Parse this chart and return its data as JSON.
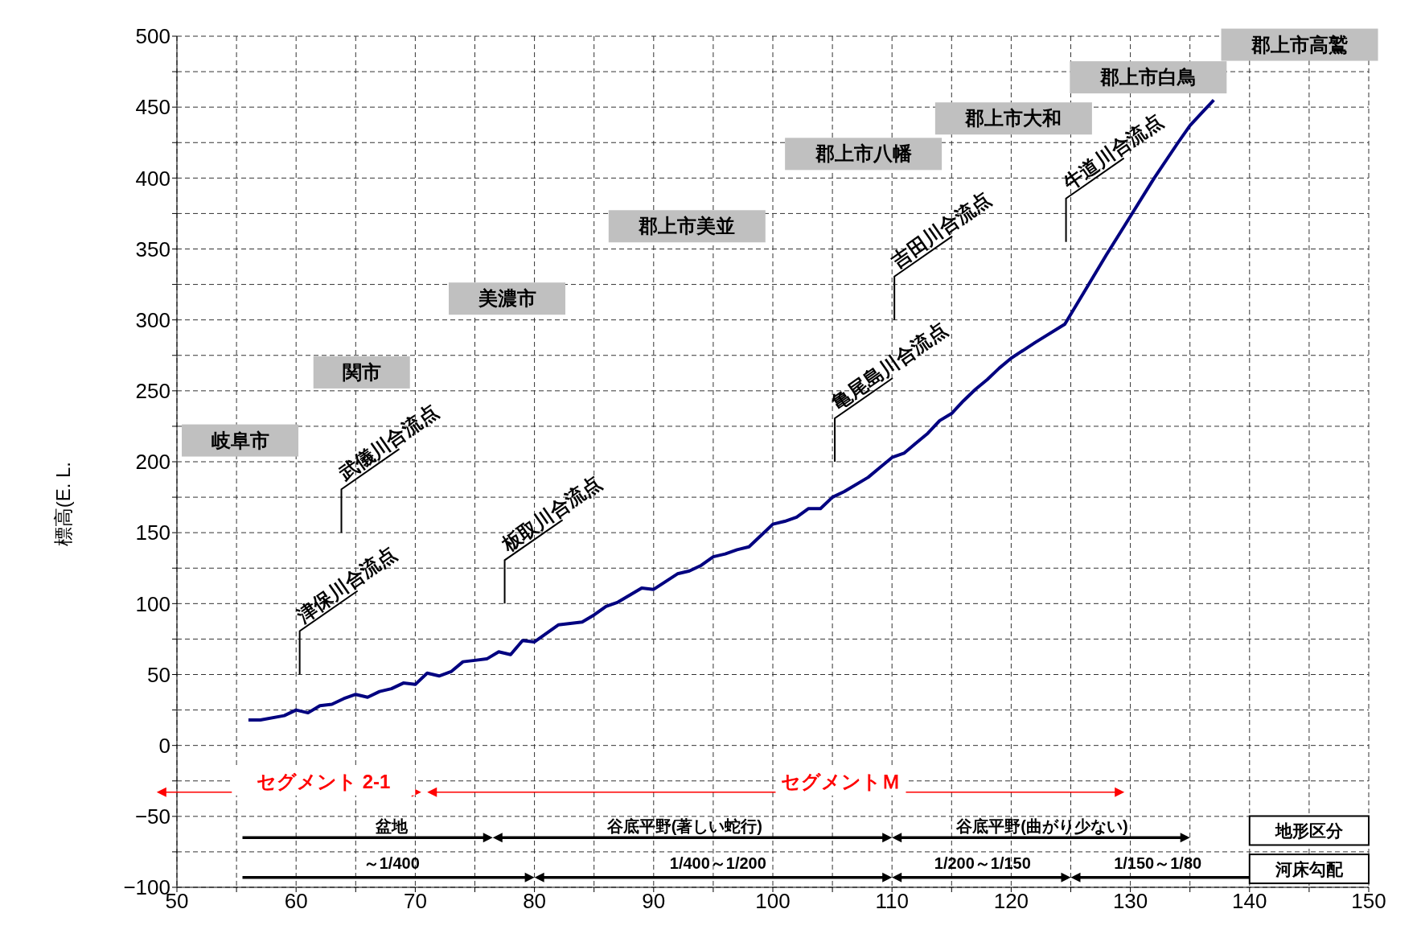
{
  "chart_data": {
    "type": "line",
    "ylabel": "標高(E. L.",
    "xlim": [
      50,
      150
    ],
    "xticks": [
      50,
      {
        "value": 55,
        "label": null
      },
      60,
      {
        "value": 65,
        "label": null
      },
      70,
      {
        "value": 75,
        "label": null
      },
      80,
      {
        "value": 85,
        "label": null
      },
      90,
      {
        "value": 95,
        "label": null
      },
      100,
      {
        "value": 105,
        "label": null
      },
      110,
      {
        "value": 115,
        "label": null
      },
      120,
      {
        "value": 125,
        "label": null
      },
      130,
      {
        "value": 135,
        "label": null
      },
      140,
      {
        "value": 145,
        "label": null
      },
      150
    ],
    "ylim": [
      -100,
      500
    ],
    "yticks": [
      -100,
      {
        "value": -75,
        "label": null
      },
      -50,
      {
        "value": -25,
        "label": null
      },
      0,
      {
        "value": 25,
        "label": null
      },
      50,
      {
        "value": 75,
        "label": null
      },
      100,
      {
        "value": 125,
        "label": null
      },
      150,
      {
        "value": 175,
        "label": null
      },
      200,
      {
        "value": 225,
        "label": null
      },
      250,
      {
        "value": 275,
        "label": null
      },
      300,
      {
        "value": 325,
        "label": null
      },
      350,
      {
        "value": 375,
        "label": null
      },
      400,
      {
        "value": 425,
        "label": null
      },
      450,
      {
        "value": 475,
        "label": null
      },
      500
    ],
    "grid": true,
    "line_style": "solid",
    "marker": "none",
    "series": [
      {
        "color": "#000080",
        "x": [
          56,
          57,
          59,
          60,
          61,
          62,
          63,
          64,
          65,
          66,
          67,
          68,
          69,
          70,
          71,
          72,
          73,
          74,
          75,
          76,
          77,
          78,
          79,
          80,
          82,
          84,
          85,
          86,
          87,
          88,
          89,
          90,
          92,
          93,
          94,
          95,
          96,
          97,
          98,
          99,
          100,
          101,
          102,
          103,
          104,
          105,
          106,
          108,
          109,
          110,
          111,
          112,
          113,
          114,
          115,
          116,
          117,
          118,
          119,
          120,
          122,
          124.5,
          126,
          128,
          130,
          132,
          134,
          135,
          136,
          137
        ],
        "values": [
          18,
          18,
          21,
          25,
          23,
          28,
          29,
          33,
          36,
          34,
          38,
          40,
          44,
          43,
          51,
          49,
          52,
          59,
          60,
          61,
          66,
          64,
          74,
          73,
          85,
          87,
          92,
          98,
          101,
          106,
          111,
          110,
          121,
          123,
          127,
          133,
          135,
          138,
          140,
          148,
          156,
          158,
          161,
          167,
          167,
          175,
          179,
          189,
          196,
          203,
          206,
          213,
          220,
          229,
          234,
          243,
          251,
          258,
          266,
          273,
          284,
          297,
          318,
          346,
          373,
          400,
          425,
          437,
          446,
          455
        ]
      }
    ],
    "annotations": [
      "津保川合流点",
      "武儀川合流点",
      "板取川合流点",
      "亀尾島川合流点",
      "吉田川合流点",
      "牛道川合流点",
      "岐阜市",
      "関市",
      "美濃市",
      "郡上市美並",
      "郡上市八幡",
      "郡上市大和",
      "郡上市白鳥",
      "郡上市高鷲",
      "セグメント 2-1",
      "セグメントＭ",
      "盆地",
      "谷底平野(著しい蛇行)",
      "谷底平野(曲がり少ない)",
      "～1/400",
      "1/400～1/200",
      "1/200～1/150",
      "1/150～1/80",
      "地形区分",
      "河床勾配"
    ]
  }
}
